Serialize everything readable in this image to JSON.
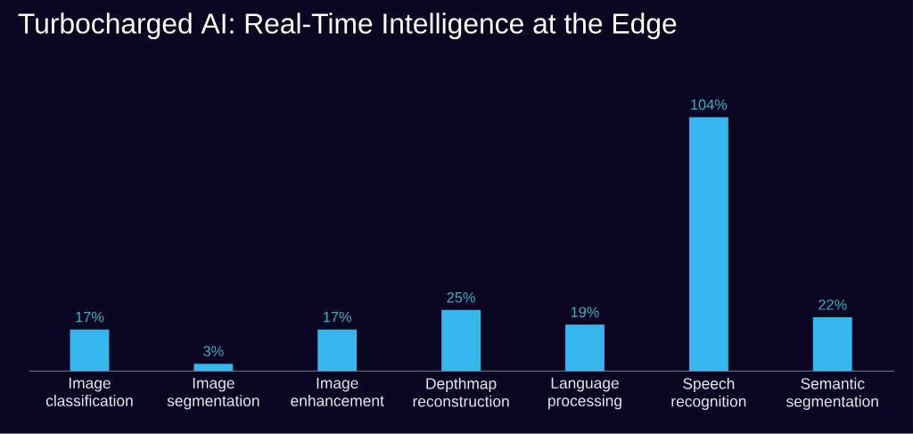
{
  "chart_data": {
    "type": "bar",
    "title": "Turbocharged AI: Real-Time Intelligence at the Edge",
    "categories": [
      "Image classification",
      "Image segmentation",
      "Image enhancement",
      "Depthmap reconstruction",
      "Language processing",
      "Speech recognition",
      "Semantic segmentation"
    ],
    "values": [
      17,
      3,
      17,
      25,
      19,
      104,
      22
    ],
    "value_labels": [
      "17%",
      "3%",
      "17%",
      "25%",
      "19%",
      "104%",
      "22%"
    ],
    "color": "#35b6ec"
  }
}
